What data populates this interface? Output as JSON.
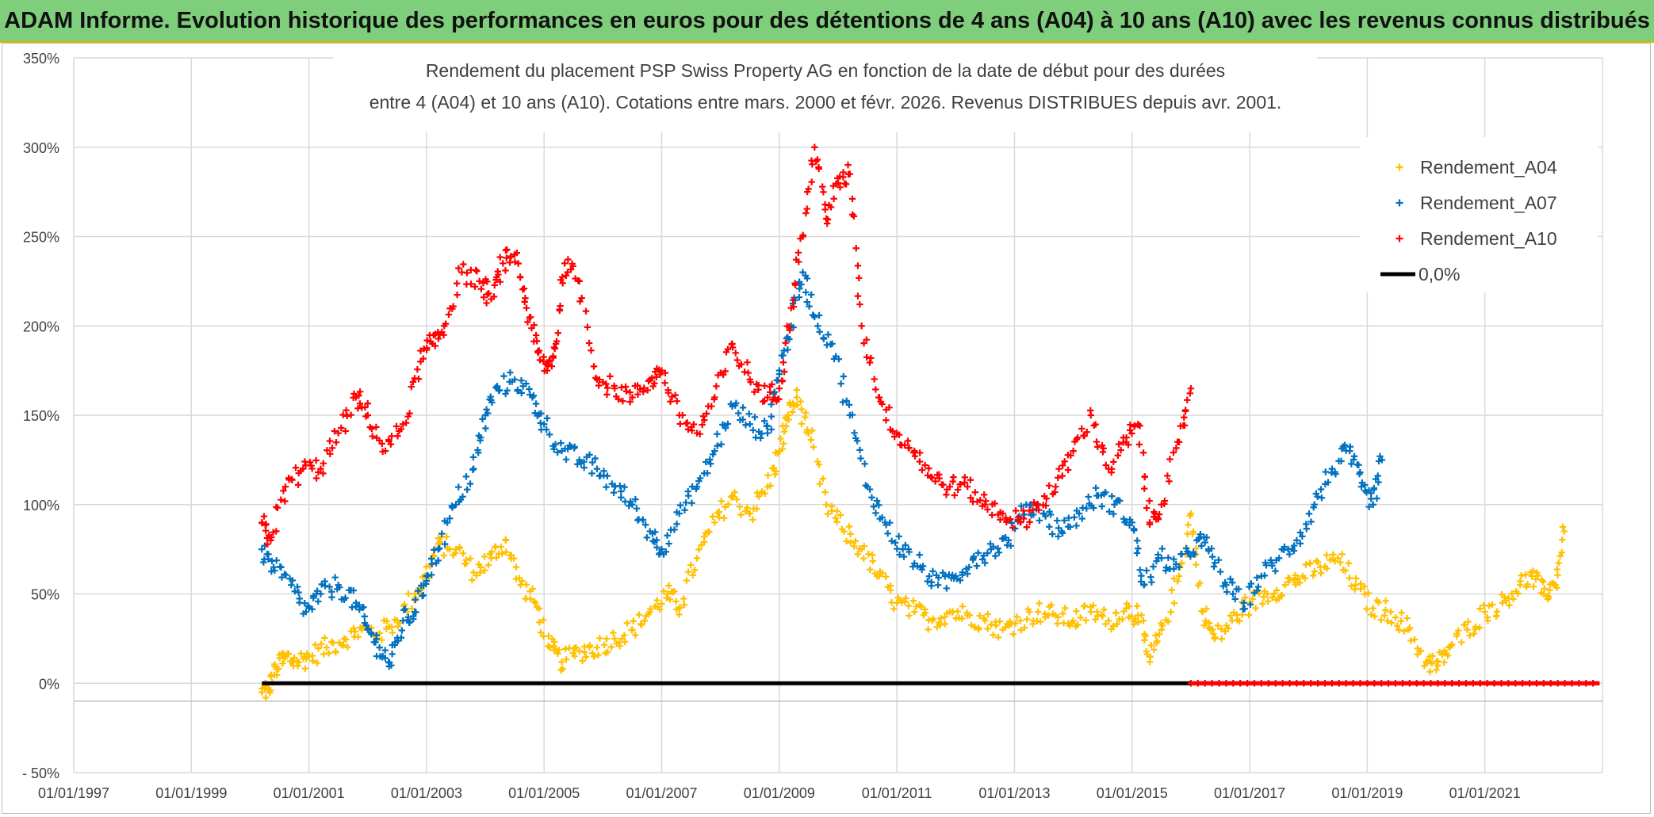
{
  "header": {
    "title": "ADAM Informe. Evolution historique des performances en euros pour des détentions de 4 ans (A04) à 10 ans (A10) avec les revenus connus distribués",
    "accent_color": "#7fce7c"
  },
  "chart_data": {
    "type": "scatter",
    "title_line1": "Rendement du placement PSP Swiss Property AG en fonction de la date de début pour des durées",
    "title_line2": "entre 4 (A04) et 10 ans (A10). Cotations entre mars. 2000 et févr. 2026. Revenus DISTRIBUES depuis avr. 2001.",
    "xlim": [
      1997.0,
      2023.0
    ],
    "ylim": [
      -50,
      350
    ],
    "y_ticks": [
      -50,
      0,
      50,
      100,
      150,
      200,
      250,
      300,
      350
    ],
    "y_tick_labels": [
      "- 50%",
      "0%",
      "50%",
      "100%",
      "150%",
      "200%",
      "250%",
      "300%",
      "350%"
    ],
    "x_ticks": [
      1997,
      1999,
      2001,
      2003,
      2005,
      2007,
      2009,
      2011,
      2013,
      2015,
      2017,
      2019,
      2021
    ],
    "x_tick_labels": [
      "01/01/1997",
      "01/01/1999",
      "01/01/2001",
      "01/01/2003",
      "01/01/2005",
      "01/01/2007",
      "01/01/2009",
      "01/01/2011",
      "01/01/2013",
      "01/01/2015",
      "01/01/2017",
      "01/01/2019",
      "01/01/2021"
    ],
    "legend_position": "top-right",
    "series": [
      {
        "name": "Rendement_A04",
        "color": "#ffc000",
        "marker": "+",
        "x": [
          2000.2,
          2000.3,
          2000.45,
          2000.6,
          2000.8,
          2001.0,
          2001.3,
          2001.6,
          2001.9,
          2002.2,
          2002.5,
          2002.8,
          2003.0,
          2003.2,
          2003.5,
          2003.8,
          2004.1,
          2004.35,
          2004.6,
          2004.85,
          2005.1,
          2005.3,
          2005.6,
          2005.9,
          2006.2,
          2006.5,
          2006.8,
          2007.1,
          2007.3,
          2007.6,
          2007.9,
          2008.2,
          2008.5,
          2008.8,
          2009.0,
          2009.15,
          2009.3,
          2009.5,
          2009.8,
          2010.1,
          2010.4,
          2010.7,
          2011.0,
          2011.3,
          2011.6,
          2011.9,
          2012.2,
          2012.5,
          2012.8,
          2013.1,
          2013.4,
          2013.7,
          2014.0,
          2014.3,
          2014.6,
          2014.9,
          2015.1,
          2015.3,
          2015.5,
          2015.8,
          2016.0,
          2016.2,
          2016.4,
          2016.7,
          2017.0,
          2017.3,
          2017.6,
          2017.9,
          2018.2,
          2018.5,
          2018.8,
          2019.1,
          2019.4,
          2019.7,
          2020.0,
          2020.2,
          2020.4,
          2020.7,
          2021.0,
          2021.3,
          2021.6,
          2021.8,
          2022.0,
          2022.2,
          2022.35
        ],
        "y": [
          -5,
          -3,
          8,
          15,
          12,
          15,
          20,
          25,
          30,
          28,
          35,
          50,
          60,
          78,
          75,
          62,
          70,
          80,
          55,
          45,
          20,
          12,
          18,
          20,
          25,
          30,
          40,
          50,
          42,
          70,
          90,
          105,
          95,
          110,
          130,
          150,
          160,
          140,
          100,
          85,
          75,
          60,
          45,
          40,
          35,
          40,
          38,
          35,
          30,
          35,
          40,
          38,
          35,
          40,
          35,
          42,
          38,
          12,
          30,
          60,
          95,
          40,
          25,
          35,
          45,
          50,
          55,
          60,
          65,
          70,
          55,
          42,
          40,
          30,
          12,
          10,
          20,
          30,
          40,
          45,
          55,
          60,
          50,
          55,
          85
        ]
      },
      {
        "name": "Rendement_A07",
        "color": "#0070c0",
        "marker": "+",
        "x": [
          2000.2,
          2000.4,
          2000.7,
          2000.95,
          2001.2,
          2001.5,
          2001.8,
          2002.0,
          2002.2,
          2002.4,
          2002.6,
          2002.8,
          2003.0,
          2003.2,
          2003.5,
          2003.8,
          2004.0,
          2004.2,
          2004.5,
          2004.8,
          2005.0,
          2005.3,
          2005.6,
          2005.9,
          2006.2,
          2006.5,
          2006.8,
          2007.0,
          2007.3,
          2007.6,
          2007.9,
          2008.2,
          2008.5,
          2008.8,
          2009.0,
          2009.2,
          2009.4,
          2009.6,
          2009.9,
          2010.2,
          2010.5,
          2010.8,
          2011.1,
          2011.4,
          2011.7,
          2012.0,
          2012.3,
          2012.6,
          2012.9,
          2013.2,
          2013.5,
          2013.8,
          2014.1,
          2014.4,
          2014.7,
          2015.0,
          2015.2,
          2015.5,
          2015.8,
          2016.1,
          2016.3,
          2016.6,
          2016.9,
          2017.2,
          2017.5,
          2017.8,
          2018.1,
          2018.4,
          2018.7,
          2018.9,
          2019.1,
          2019.25
        ],
        "y": [
          75,
          65,
          55,
          40,
          50,
          55,
          45,
          30,
          20,
          10,
          35,
          40,
          60,
          75,
          100,
          120,
          150,
          165,
          170,
          160,
          145,
          130,
          125,
          120,
          110,
          100,
          85,
          75,
          95,
          110,
          130,
          155,
          145,
          140,
          175,
          200,
          230,
          205,
          190,
          150,
          110,
          90,
          75,
          65,
          55,
          60,
          70,
          75,
          80,
          100,
          95,
          85,
          95,
          105,
          100,
          90,
          55,
          70,
          65,
          80,
          75,
          55,
          45,
          60,
          70,
          80,
          100,
          120,
          130,
          110,
          100,
          125
        ]
      },
      {
        "name": "Rendement_A10",
        "color": "#ff0000",
        "marker": "+",
        "x": [
          2000.2,
          2000.35,
          2000.6,
          2000.9,
          2001.2,
          2001.5,
          2001.8,
          2002.0,
          2002.3,
          2002.6,
          2002.9,
          2003.1,
          2003.3,
          2003.6,
          2003.9,
          2004.1,
          2004.3,
          2004.5,
          2004.7,
          2004.9,
          2005.05,
          2005.2,
          2005.35,
          2005.6,
          2005.9,
          2006.2,
          2006.5,
          2006.8,
          2007.0,
          2007.3,
          2007.6,
          2007.9,
          2008.2,
          2008.5,
          2008.8,
          2009.0,
          2009.2,
          2009.4,
          2009.6,
          2009.8,
          2010.0,
          2010.2,
          2010.4,
          2010.7,
          2011.0,
          2011.3,
          2011.6,
          2011.9,
          2012.2,
          2012.5,
          2012.8,
          2013.1,
          2013.4,
          2013.7,
          2014.0,
          2014.3,
          2014.6,
          2014.9,
          2015.1,
          2015.3,
          2015.5,
          2015.8,
          2016.0
        ],
        "y": [
          90,
          80,
          110,
          120,
          120,
          140,
          160,
          150,
          130,
          145,
          180,
          190,
          200,
          230,
          225,
          215,
          235,
          240,
          210,
          185,
          175,
          190,
          235,
          225,
          170,
          165,
          160,
          170,
          175,
          150,
          140,
          160,
          190,
          170,
          160,
          165,
          210,
          250,
          300,
          260,
          280,
          285,
          200,
          160,
          140,
          130,
          115,
          110,
          110,
          100,
          95,
          90,
          100,
          110,
          130,
          150,
          120,
          135,
          145,
          90,
          100,
          135,
          165
        ]
      },
      {
        "name": "0,0%",
        "color": "#000000",
        "marker": "line",
        "x": [
          2000.2,
          2022.95
        ],
        "y": [
          0,
          0
        ]
      }
    ],
    "zero_segment": {
      "color": "#ff0000",
      "x": [
        2016.0,
        2022.95
      ],
      "y": [
        0,
        0
      ]
    }
  }
}
